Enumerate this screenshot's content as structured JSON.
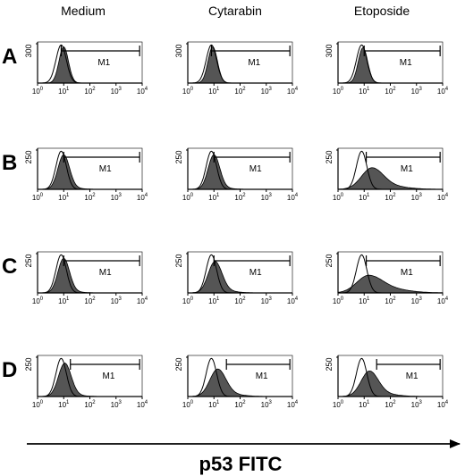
{
  "chart_data": {
    "type": "area",
    "columns": [
      "Medium",
      "Cytarabin",
      "Etoposide"
    ],
    "rows": [
      "A",
      "B",
      "C",
      "D"
    ],
    "x_scale": "log",
    "xlim": [
      1,
      10000
    ],
    "x_ticks": [
      "10",
      "10",
      "10",
      "10",
      "10"
    ],
    "x_tick_exponents": [
      "0",
      "1",
      "2",
      "3",
      "4"
    ],
    "row_ymax": [
      "300",
      "250",
      "250",
      "250"
    ],
    "gate_label": "M1",
    "xlabel": "p53 FITC",
    "colors": {
      "filled": "#555555",
      "open": "#ffffff",
      "line": "#000000"
    },
    "panels": [
      {
        "row": "A",
        "col": "Medium",
        "gate": [
          8,
          8000
        ],
        "filled_peak": 10,
        "filled_width": 0.18,
        "filled_height": 0.92,
        "filled_tail": 0.0,
        "open_peak": 8,
        "open_width": 0.2
      },
      {
        "row": "A",
        "col": "Cytarabin",
        "gate": [
          8,
          8000
        ],
        "filled_peak": 9,
        "filled_width": 0.18,
        "filled_height": 0.92,
        "filled_tail": 0.0,
        "open_peak": 8,
        "open_width": 0.2
      },
      {
        "row": "A",
        "col": "Etoposide",
        "gate": [
          10,
          8000
        ],
        "filled_peak": 9,
        "filled_width": 0.18,
        "filled_height": 0.9,
        "filled_tail": 0.0,
        "open_peak": 8,
        "open_width": 0.2
      },
      {
        "row": "B",
        "col": "Medium",
        "gate": [
          10,
          8000
        ],
        "filled_peak": 10,
        "filled_width": 0.22,
        "filled_height": 0.88,
        "filled_tail": 0.05,
        "open_peak": 8,
        "open_width": 0.2
      },
      {
        "row": "B",
        "col": "Cytarabin",
        "gate": [
          10,
          8000
        ],
        "filled_peak": 10,
        "filled_width": 0.22,
        "filled_height": 0.88,
        "filled_tail": 0.05,
        "open_peak": 8,
        "open_width": 0.2
      },
      {
        "row": "B",
        "col": "Etoposide",
        "gate": [
          12,
          8000
        ],
        "filled_peak": 20,
        "filled_width": 0.4,
        "filled_height": 0.55,
        "filled_tail": 0.15,
        "open_peak": 8,
        "open_width": 0.2
      },
      {
        "row": "C",
        "col": "Medium",
        "gate": [
          10,
          8000
        ],
        "filled_peak": 10,
        "filled_width": 0.22,
        "filled_height": 0.88,
        "filled_tail": 0.05,
        "open_peak": 8,
        "open_width": 0.2
      },
      {
        "row": "C",
        "col": "Cytarabin",
        "gate": [
          10,
          8000
        ],
        "filled_peak": 11,
        "filled_width": 0.26,
        "filled_height": 0.8,
        "filled_tail": 0.08,
        "open_peak": 8,
        "open_width": 0.2
      },
      {
        "row": "C",
        "col": "Etoposide",
        "gate": [
          12,
          8000
        ],
        "filled_peak": 15,
        "filled_width": 0.45,
        "filled_height": 0.45,
        "filled_tail": 0.2,
        "open_peak": 8,
        "open_width": 0.2
      },
      {
        "row": "D",
        "col": "Medium",
        "gate": [
          18,
          8000
        ],
        "filled_peak": 11,
        "filled_width": 0.24,
        "filled_height": 0.85,
        "filled_tail": 0.05,
        "open_peak": 8,
        "open_width": 0.2
      },
      {
        "row": "D",
        "col": "Cytarabin",
        "gate": [
          30,
          8000
        ],
        "filled_peak": 14,
        "filled_width": 0.3,
        "filled_height": 0.7,
        "filled_tail": 0.1,
        "open_peak": 8,
        "open_width": 0.2
      },
      {
        "row": "D",
        "col": "Etoposide",
        "gate": [
          30,
          8000
        ],
        "filled_peak": 16,
        "filled_width": 0.32,
        "filled_height": 0.65,
        "filled_tail": 0.12,
        "open_peak": 8,
        "open_width": 0.2
      }
    ]
  }
}
